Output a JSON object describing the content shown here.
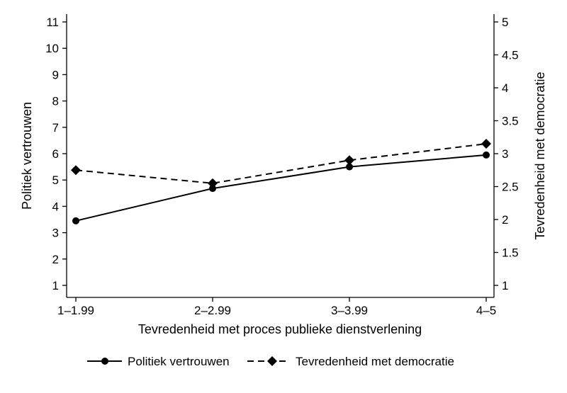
{
  "chart_data": {
    "type": "line",
    "categories": [
      "1–1.99",
      "2–2.99",
      "3–3.99",
      "4–5"
    ],
    "xlabel": "Tevredenheid met proces publieke dienstverlening",
    "ylabel_left": "Politiek vertrouwen",
    "ylabel_right": "Tevredenheid met democratie",
    "ylim_left": [
      1,
      11
    ],
    "ylim_right": [
      1,
      5
    ],
    "yticks_left": [
      "1",
      "2",
      "3",
      "4",
      "5",
      "6",
      "7",
      "8",
      "9",
      "10",
      "11"
    ],
    "yticks_right": [
      "1",
      "1.5",
      "2",
      "2.5",
      "3",
      "3.5",
      "4",
      "4.5",
      "5"
    ],
    "grid": false,
    "legend_position": "bottom",
    "series": [
      {
        "name": "Politiek vertrouwen",
        "axis": "left",
        "marker": "circle",
        "line_style": "solid",
        "color": "#000000",
        "values": [
          3.45,
          4.68,
          5.5,
          5.95
        ]
      },
      {
        "name": "Tevredenheid met democratie",
        "axis": "right",
        "marker": "diamond",
        "line_style": "dashed",
        "color": "#000000",
        "values": [
          2.75,
          2.55,
          2.9,
          3.15
        ]
      }
    ]
  }
}
